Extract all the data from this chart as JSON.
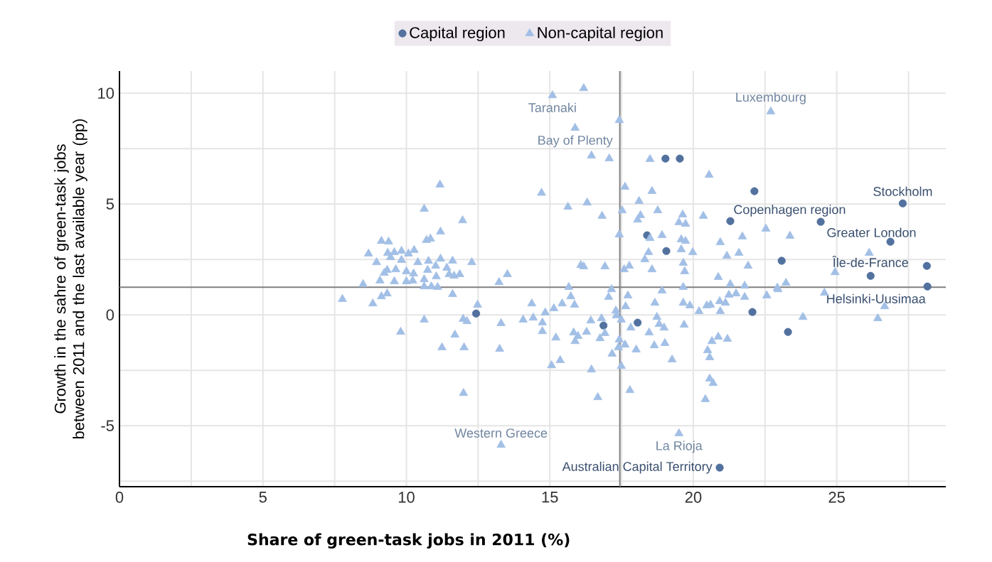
{
  "chart_data": {
    "type": "scatter",
    "xlabel": "Share of green-task jobs in 2011 (%)",
    "ylabel": "Growth in the sahre of green-task jobs between 2011 and the last available year (pp)",
    "xlim": [
      0,
      28.8
    ],
    "ylim": [
      -7.75,
      11
    ],
    "xticks": [
      0,
      {
        "value": 2.5,
        "label": null
      },
      5,
      {
        "value": 7.5,
        "label": null
      },
      10,
      {
        "value": 12.5,
        "label": null
      },
      15,
      {
        "value": 17.5,
        "label": null
      },
      20,
      {
        "value": 22.5,
        "label": null
      },
      25,
      {
        "value": 27.5,
        "label": null
      }
    ],
    "yticks": [
      {
        "value": -7.5,
        "label": null
      },
      -5,
      {
        "value": -2.5,
        "label": null
      },
      0,
      {
        "value": 2.5,
        "label": null
      },
      5,
      {
        "value": 7.5,
        "label": null
      },
      10
    ],
    "grid": true,
    "legend": "top",
    "ref_lines": [
      {
        "axis": "x",
        "value": 17.44,
        "color": "#7f7f7f"
      },
      {
        "axis": "y",
        "value": 1.25,
        "color": "#7f7f7f"
      }
    ],
    "series": [
      {
        "name": "Capital region",
        "color": "#52719e",
        "marker": "circle",
        "x": [
          12.43,
          16.87,
          18.06,
          18.39,
          19.03,
          19.53,
          19.06,
          22.13,
          21.29,
          23.08,
          22.06,
          23.3,
          24.44,
          27.3,
          26.87,
          26.18,
          28.14,
          28.16,
          20.92
        ],
        "values": [
          0.06,
          -0.48,
          -0.35,
          3.59,
          7.05,
          7.05,
          2.88,
          5.58,
          4.23,
          2.44,
          0.13,
          -0.77,
          4.2,
          5.03,
          3.3,
          1.76,
          2.21,
          1.28,
          -6.89
        ]
      },
      {
        "name": "Non-capital region",
        "color": "#a2bfe6",
        "marker": "triangle",
        "x": [
          15.09,
          15.88,
          11.17,
          14.71,
          15.63,
          10.62,
          11.96,
          11.19,
          10.7,
          10.84,
          9.13,
          9.38,
          8.68,
          9.35,
          9.58,
          9.83,
          10.07,
          10.27,
          8.96,
          9.45,
          9.83,
          10.4,
          10.77,
          11.19,
          11.61,
          12.28,
          9.33,
          9.23,
          9.63,
          10.0,
          10.25,
          10.74,
          11.02,
          11.41,
          11.49,
          11.66,
          11.86,
          11.04,
          10.62,
          9.08,
          9.58,
          10.0,
          10.22,
          8.49,
          10.62,
          10.87,
          11.09,
          13.23,
          13.52,
          11.61,
          9.33,
          9.13,
          7.77,
          8.83,
          12.48,
          10.62,
          11.98,
          12.11,
          9.8,
          11.69,
          11.24,
          12.01,
          13.25,
          13.3,
          11.99,
          13.3,
          14.07,
          14.37,
          14.42,
          14.84,
          15.14,
          15.43,
          15.86,
          15.66,
          15.73,
          16.08,
          14.74,
          14.74,
          15.21,
          15.83,
          15.98,
          15.88,
          15.36,
          15.06,
          16.18,
          17.42,
          22.7,
          16.45,
          17.07,
          18.49,
          20.55,
          17.62,
          18.56,
          16.3,
          18.11,
          17.52,
          18.76,
          16.82,
          18.16,
          18.06,
          19.63,
          19.5,
          19.73,
          20.35,
          22.53,
          17.42,
          18.91,
          18.49,
          19.58,
          19.73,
          20.94,
          21.71,
          18.44,
          18.31,
          19.58,
          19.98,
          21.17,
          21.59,
          16.18,
          16.92,
          17.59,
          17.77,
          18.56,
          19.65,
          19.7,
          21.91,
          20.87,
          17.15,
          18.91,
          19.65,
          21.29,
          21.79,
          17.05,
          17.72,
          18.66,
          19.65,
          19.88,
          20.2,
          20.6,
          20.92,
          21.12,
          21.24,
          21.49,
          21.79,
          22.56,
          22.95,
          20.47,
          20.94,
          17.3,
          17.32,
          17.64,
          16.8,
          16.43,
          17.49,
          18.73,
          18.81,
          18.98,
          19.68,
          17.82,
          18.46,
          16.75,
          16.92,
          16.28,
          17.42,
          17.62,
          17.39,
          18.01,
          18.64,
          19.01,
          17.17,
          19.26,
          20.5,
          20.57,
          20.87,
          20.65,
          21.19,
          17.49,
          16.45,
          17.79,
          16.67,
          20.57,
          20.69,
          20.42,
          19.5,
          23.37,
          24.94,
          26.13,
          22.93,
          23.23,
          24.57,
          23.82,
          26.67,
          26.43
        ],
        "values": [
          9.9,
          8.43,
          5.87,
          5.5,
          4.87,
          4.78,
          4.26,
          3.75,
          3.37,
          3.43,
          3.33,
          3.3,
          2.76,
          2.79,
          2.82,
          2.88,
          2.76,
          2.92,
          2.37,
          2.6,
          2.47,
          2.37,
          2.43,
          2.53,
          2.44,
          2.37,
          2.02,
          1.89,
          2.05,
          1.96,
          1.86,
          2.02,
          2.21,
          2.12,
          1.83,
          1.76,
          1.83,
          1.73,
          1.6,
          1.54,
          1.51,
          1.51,
          1.54,
          1.38,
          1.28,
          1.28,
          1.25,
          1.47,
          1.83,
          0.93,
          0.96,
          0.83,
          0.71,
          0.51,
          0.45,
          -0.22,
          -0.19,
          -0.29,
          -0.77,
          -0.9,
          -1.47,
          -1.47,
          -1.54,
          -0.38,
          -3.53,
          -5.87,
          -0.22,
          0.51,
          -0.13,
          0.1,
          0.29,
          0.51,
          0.45,
          1.25,
          0.83,
          2.24,
          -0.35,
          -0.74,
          -1.03,
          -0.8,
          -0.96,
          -1.19,
          -2.05,
          -2.28,
          10.22,
          8.78,
          9.17,
          7.18,
          7.05,
          7.02,
          6.31,
          5.77,
          5.58,
          5.06,
          5.13,
          4.71,
          4.71,
          4.46,
          4.49,
          4.29,
          4.52,
          4.17,
          4.1,
          4.46,
          3.88,
          3.62,
          3.59,
          3.46,
          3.4,
          3.33,
          3.27,
          3.53,
          2.82,
          2.5,
          2.95,
          2.82,
          2.66,
          2.79,
          2.18,
          2.18,
          2.05,
          2.21,
          2.05,
          2.34,
          1.96,
          2.21,
          1.7,
          1.15,
          1.09,
          1.25,
          1.38,
          1.31,
          0.8,
          0.87,
          0.54,
          0.54,
          0.42,
          0.16,
          0.45,
          0.61,
          0.54,
          0.9,
          0.96,
          0.8,
          0.87,
          1.15,
          0.42,
          0.16,
          0.19,
          -0.03,
          0.38,
          -0.16,
          -0.26,
          -0.22,
          -0.1,
          -0.42,
          -0.58,
          -0.45,
          -0.58,
          -0.8,
          -1.06,
          -0.83,
          -0.77,
          -1.12,
          -1.35,
          -1.47,
          -1.57,
          -1.38,
          -1.28,
          -1.76,
          -2.02,
          -1.6,
          -1.92,
          -0.99,
          -1.19,
          -1.09,
          -2.31,
          -2.47,
          -3.4,
          -3.72,
          -2.88,
          -3.08,
          -3.81,
          -5.35,
          3.56,
          1.92,
          2.79,
          1.22,
          1.44,
          0.99,
          -0.1,
          0.38,
          -0.16
        ]
      }
    ],
    "annotations": [
      {
        "text": "Taranaki",
        "x": 15.09,
        "y": 9.9
      },
      {
        "text": "Bay of Plenty",
        "x": 15.88,
        "y": 8.43
      },
      {
        "text": "Luxembourg",
        "x": 22.7,
        "y": 9.17
      },
      {
        "text": "Copenhagen region",
        "x": 21.29,
        "y": 4.23
      },
      {
        "text": "Stockholm",
        "x": 27.3,
        "y": 5.03
      },
      {
        "text": "Greater London",
        "x": 24.44,
        "y": 4.2
      },
      {
        "text": "Île-de-France",
        "x": 26.18,
        "y": 1.76
      },
      {
        "text": "Helsinki-Uusimaa",
        "x": 28.16,
        "y": 1.28
      },
      {
        "text": "Western Greece",
        "x": 13.3,
        "y": -5.87
      },
      {
        "text": "La Rioja",
        "x": 19.5,
        "y": -5.35
      },
      {
        "text": "Australian Capital Territory",
        "x": 20.92,
        "y": -6.89
      }
    ]
  }
}
